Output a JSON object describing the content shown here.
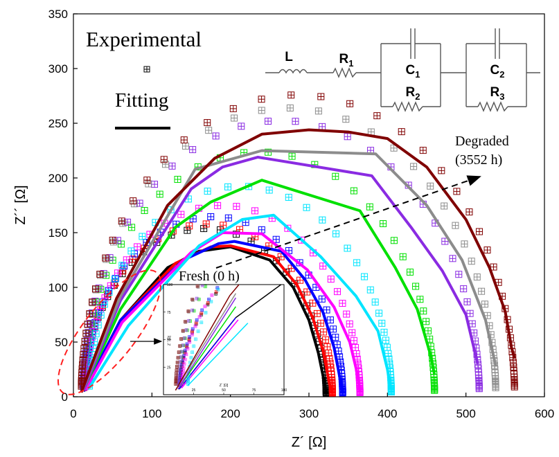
{
  "chart_data": {
    "type": "scatter",
    "xlabel": "Z´ [Ω]",
    "ylabel": "Z´´ [Ω]",
    "xlim": [
      0,
      600
    ],
    "ylim": [
      0,
      350
    ],
    "xticks": [
      0,
      100,
      200,
      300,
      400,
      500,
      600
    ],
    "yticks": [
      0,
      50,
      100,
      150,
      200,
      250,
      300,
      350
    ],
    "grid": false,
    "legend": {
      "placement": "top-left",
      "experimental_label": "Experimental",
      "fitting_label": "Fitting"
    },
    "annotations": {
      "degraded": [
        "Degraded",
        "(3552 h)"
      ],
      "fresh": "Fresh (0 h)"
    },
    "equivalent_circuit": {
      "L": "L",
      "R1": [
        "R",
        "1"
      ],
      "C1": [
        "C",
        "1"
      ],
      "R2": [
        "R",
        "2"
      ],
      "C2": [
        "C",
        "2"
      ],
      "R3": [
        "R",
        "3"
      ]
    },
    "inset": {
      "xlabel": "Z´ [Ω]",
      "ylabel": "Z´´ [Ω]",
      "xticks": [
        "25",
        "50",
        "75",
        "100"
      ],
      "yticks": [
        "25",
        "50",
        "75",
        "100"
      ],
      "xlim": [
        0,
        100
      ],
      "ylim": [
        0,
        100
      ]
    },
    "series": [
      {
        "color": "#000000",
        "R0": 13,
        "arcs": [
          [
            150,
            140
          ],
          [
            40,
            110
          ]
        ],
        "intercept": 322,
        "fit": [
          [
            13,
            5
          ],
          [
            60,
            70
          ],
          [
            120,
            118
          ],
          [
            160,
            133
          ],
          [
            200,
            137
          ],
          [
            250,
            125
          ],
          [
            280,
            100
          ],
          [
            300,
            70
          ],
          [
            312,
            40
          ],
          [
            320,
            12
          ],
          [
            322,
            3
          ]
        ]
      },
      {
        "color": "#ff0000",
        "R0": 13,
        "arcs": [
          [
            150,
            140
          ],
          [
            45,
            115
          ]
        ],
        "intercept": 330,
        "fit": [
          [
            13,
            5
          ],
          [
            60,
            70
          ],
          [
            130,
            122
          ],
          [
            175,
            137
          ],
          [
            200,
            138
          ],
          [
            255,
            128
          ],
          [
            285,
            102
          ],
          [
            305,
            72
          ],
          [
            318,
            42
          ],
          [
            326,
            12
          ],
          [
            330,
            3
          ]
        ]
      },
      {
        "color": "#0000ff",
        "R0": 13,
        "arcs": [
          [
            150,
            140
          ],
          [
            55,
            120
          ]
        ],
        "intercept": 343,
        "fit": [
          [
            13,
            5
          ],
          [
            60,
            70
          ],
          [
            140,
            125
          ],
          [
            185,
            140
          ],
          [
            205,
            142
          ],
          [
            265,
            133
          ],
          [
            295,
            107
          ],
          [
            318,
            77
          ],
          [
            332,
            45
          ],
          [
            340,
            15
          ],
          [
            343,
            4
          ]
        ]
      },
      {
        "color": "#ff00ff",
        "R0": 15,
        "arcs": [
          [
            150,
            140
          ],
          [
            70,
            130
          ]
        ],
        "intercept": 365,
        "fit": [
          [
            15,
            6
          ],
          [
            62,
            68
          ],
          [
            150,
            132
          ],
          [
            190,
            150
          ],
          [
            240,
            149
          ],
          [
            298,
            116
          ],
          [
            332,
            82
          ],
          [
            352,
            50
          ],
          [
            362,
            20
          ],
          [
            365,
            5
          ]
        ]
      },
      {
        "color": "#00e5ff",
        "R0": 20,
        "arcs": [
          [
            155,
            145
          ],
          [
            95,
            140
          ]
        ],
        "intercept": 405,
        "fit": [
          [
            20,
            8
          ],
          [
            70,
            65
          ],
          [
            160,
            138
          ],
          [
            215,
            162
          ],
          [
            255,
            166
          ],
          [
            315,
            128
          ],
          [
            360,
            92
          ],
          [
            388,
            60
          ],
          [
            400,
            25
          ],
          [
            404,
            8
          ]
        ]
      },
      {
        "color": "#00e000",
        "R0": 12,
        "arcs": [
          [
            155,
            160
          ],
          [
            140,
            170
          ]
        ],
        "intercept": 460,
        "fit": [
          [
            12,
            5
          ],
          [
            60,
            80
          ],
          [
            130,
            155
          ],
          [
            175,
            178
          ],
          [
            240,
            198
          ],
          [
            365,
            170
          ],
          [
            410,
            118
          ],
          [
            438,
            80
          ],
          [
            455,
            38
          ],
          [
            460,
            20
          ]
        ]
      },
      {
        "color": "#8a2be2",
        "R0": 12,
        "arcs": [
          [
            155,
            180
          ],
          [
            200,
            190
          ]
        ],
        "intercept": 517,
        "fit": [
          [
            12,
            5
          ],
          [
            60,
            88
          ],
          [
            150,
            190
          ],
          [
            190,
            210
          ],
          [
            235,
            219
          ],
          [
            380,
            202
          ],
          [
            430,
            155
          ],
          [
            470,
            115
          ],
          [
            500,
            75
          ],
          [
            515,
            30
          ]
        ]
      },
      {
        "color": "#8c8c8c",
        "R0": 10,
        "arcs": [
          [
            155,
            195
          ],
          [
            230,
            200
          ]
        ],
        "intercept": 538,
        "fit": [
          [
            10,
            4
          ],
          [
            60,
            92
          ],
          [
            155,
            208
          ],
          [
            240,
            225
          ],
          [
            385,
            222
          ],
          [
            450,
            175
          ],
          [
            495,
            125
          ],
          [
            525,
            70
          ],
          [
            538,
            28
          ]
        ]
      },
      {
        "color": "#800000",
        "R0": 10,
        "arcs": [
          [
            160,
            200
          ],
          [
            240,
            210
          ]
        ],
        "intercept": 562,
        "fit": [
          [
            10,
            4
          ],
          [
            55,
            90
          ],
          [
            120,
            175
          ],
          [
            180,
            218
          ],
          [
            240,
            240
          ],
          [
            300,
            244
          ],
          [
            350,
            242
          ],
          [
            400,
            236
          ],
          [
            450,
            210
          ],
          [
            500,
            162
          ],
          [
            530,
            118
          ],
          [
            550,
            78
          ],
          [
            558,
            45
          ],
          [
            562,
            35
          ]
        ]
      }
    ]
  }
}
